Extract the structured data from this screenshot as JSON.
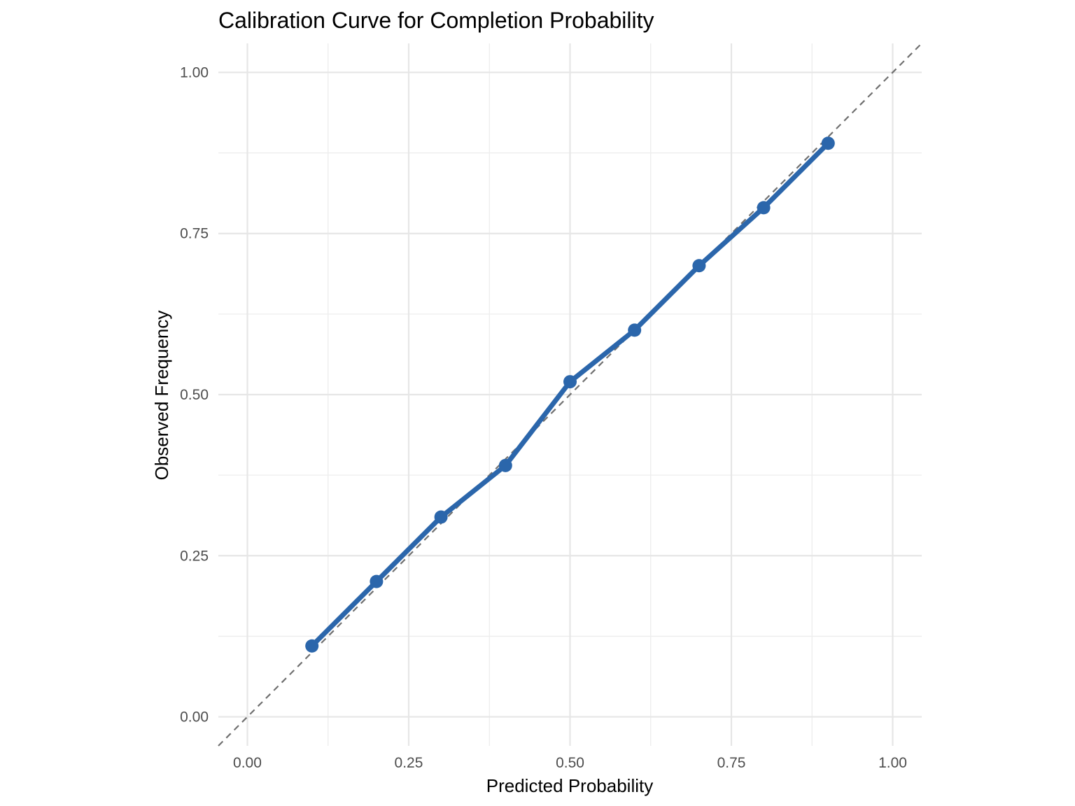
{
  "chart_data": {
    "type": "line",
    "title": "Calibration Curve for Completion Probability",
    "xlabel": "Predicted Probability",
    "ylabel": "Observed Frequency",
    "xlim": [
      -0.045,
      1.045
    ],
    "ylim": [
      -0.045,
      1.045
    ],
    "x_ticks": [
      0,
      0.25,
      0.5,
      0.75,
      1
    ],
    "x_tick_labels": [
      "0.00",
      "0.25",
      "0.50",
      "0.75",
      "1.00"
    ],
    "y_ticks": [
      0,
      0.25,
      0.5,
      0.75,
      1
    ],
    "y_tick_labels": [
      "0.00",
      "0.25",
      "0.50",
      "0.75",
      "1.00"
    ],
    "minor_ticks": [
      0.125,
      0.375,
      0.625,
      0.875
    ],
    "grid": true,
    "legend": "none",
    "series": [
      {
        "x": [
          0.1,
          0.2,
          0.3,
          0.4,
          0.5,
          0.6,
          0.7,
          0.8,
          0.9
        ],
        "y": [
          0.11,
          0.21,
          0.31,
          0.39,
          0.52,
          0.6,
          0.7,
          0.79,
          0.89
        ],
        "color": "#2b66ab"
      }
    ],
    "reference_line": {
      "type": "diagonal",
      "from": [
        -0.045,
        -0.045
      ],
      "to": [
        1.045,
        1.045
      ],
      "style": "dashed",
      "color": "#707070"
    }
  }
}
